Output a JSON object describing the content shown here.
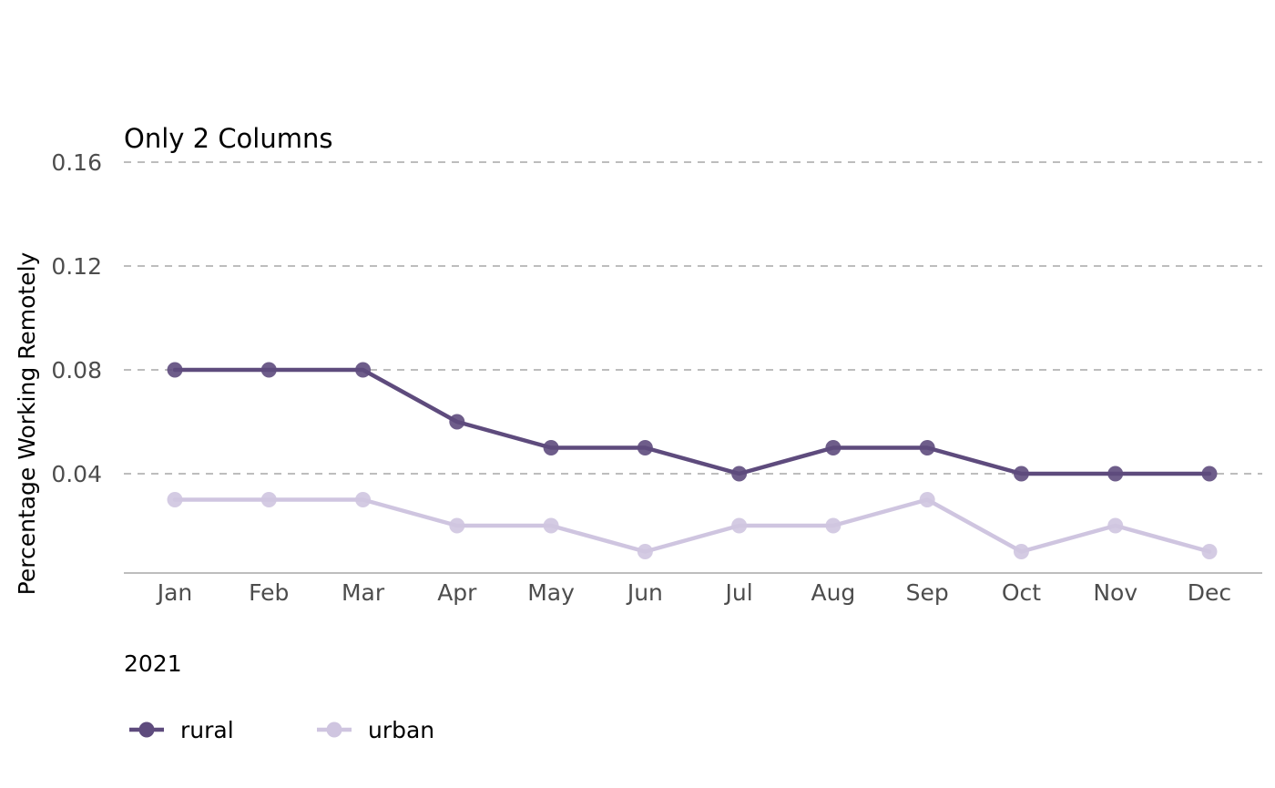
{
  "chart_data": {
    "type": "line",
    "title": "Only 2 Columns",
    "xlabel": "2021",
    "ylabel": "Percentage Working Remotely",
    "categories": [
      "Jan",
      "Feb",
      "Mar",
      "Apr",
      "May",
      "Jun",
      "Jul",
      "Aug",
      "Sep",
      "Oct",
      "Nov",
      "Dec"
    ],
    "yticks": [
      "0.04",
      "0.08",
      "0.12",
      "0.16"
    ],
    "ylim": [
      0.0,
      0.16
    ],
    "grid": "horizontal dashed",
    "legend_position": "bottom-left",
    "series": [
      {
        "name": "rural",
        "color": "#5e4b7d",
        "values": [
          0.08,
          0.08,
          0.08,
          0.06,
          0.05,
          0.05,
          0.04,
          0.05,
          0.05,
          0.04,
          0.04,
          0.04
        ]
      },
      {
        "name": "urban",
        "color": "#cfc5e0",
        "values": [
          0.03,
          0.03,
          0.03,
          0.02,
          0.02,
          0.01,
          0.02,
          0.02,
          0.03,
          0.01,
          0.02,
          0.01
        ]
      }
    ]
  }
}
